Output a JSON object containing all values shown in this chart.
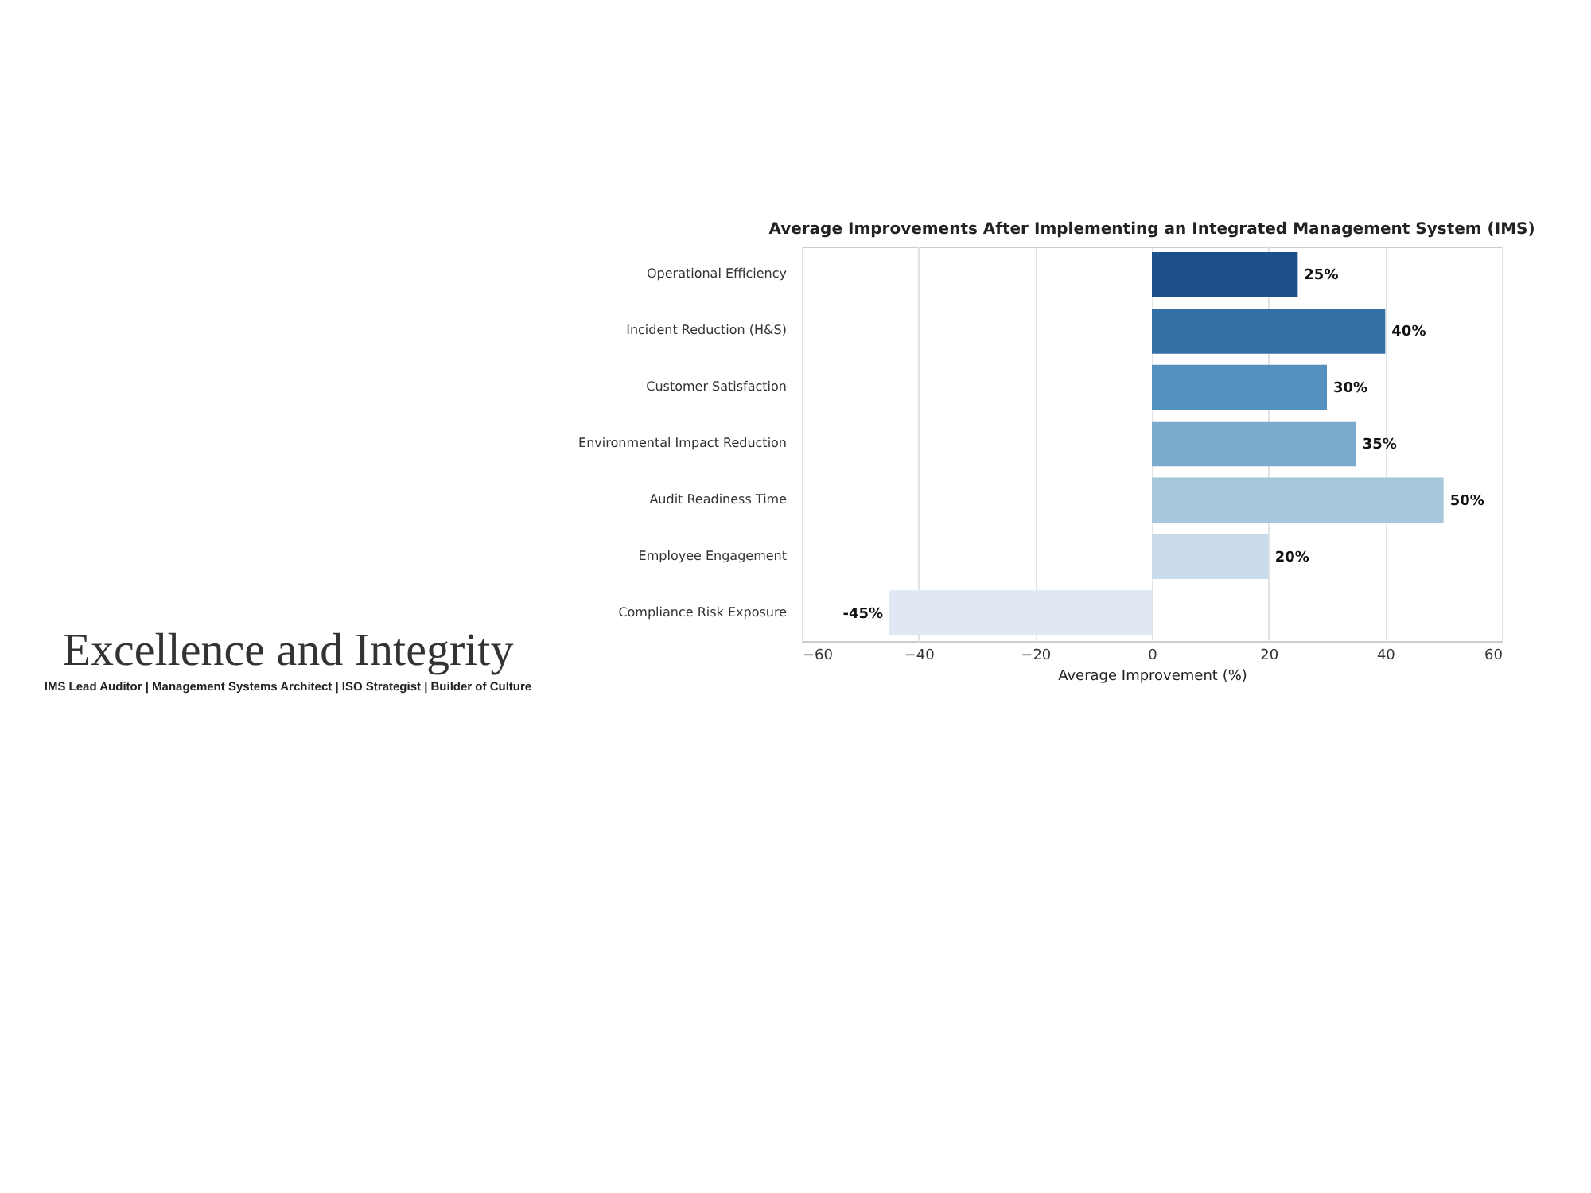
{
  "chart_data": {
    "type": "bar",
    "orientation": "horizontal",
    "title": "Average Improvements After Implementing an Integrated Management System (IMS)",
    "xlabel": "Average Improvement (%)",
    "categories": [
      "Operational Efficiency",
      "Incident Reduction (H&S)",
      "Customer Satisfaction",
      "Environmental Impact Reduction",
      "Audit Readiness Time",
      "Employee Engagement",
      "Compliance Risk Exposure"
    ],
    "values": [
      25,
      40,
      30,
      35,
      50,
      20,
      -45
    ],
    "colors": [
      "#1c4f8b",
      "#3470a6",
      "#5591bf",
      "#7aabcd",
      "#a6c7dc",
      "#c9dbeb",
      "#dfe8f3"
    ],
    "value_labels": [
      "25%",
      "40%",
      "30%",
      "35%",
      "50%",
      "20%",
      "-45%"
    ],
    "xlim": [
      -60,
      60
    ],
    "xticks": [
      -60,
      -40,
      -20,
      0,
      20,
      40,
      60
    ],
    "grid": "x",
    "annotations": [
      "Excellence and Integrity",
      "IMS Lead Auditor | Management Systems Architect | ISO Strategist | Builder of Culture"
    ]
  }
}
